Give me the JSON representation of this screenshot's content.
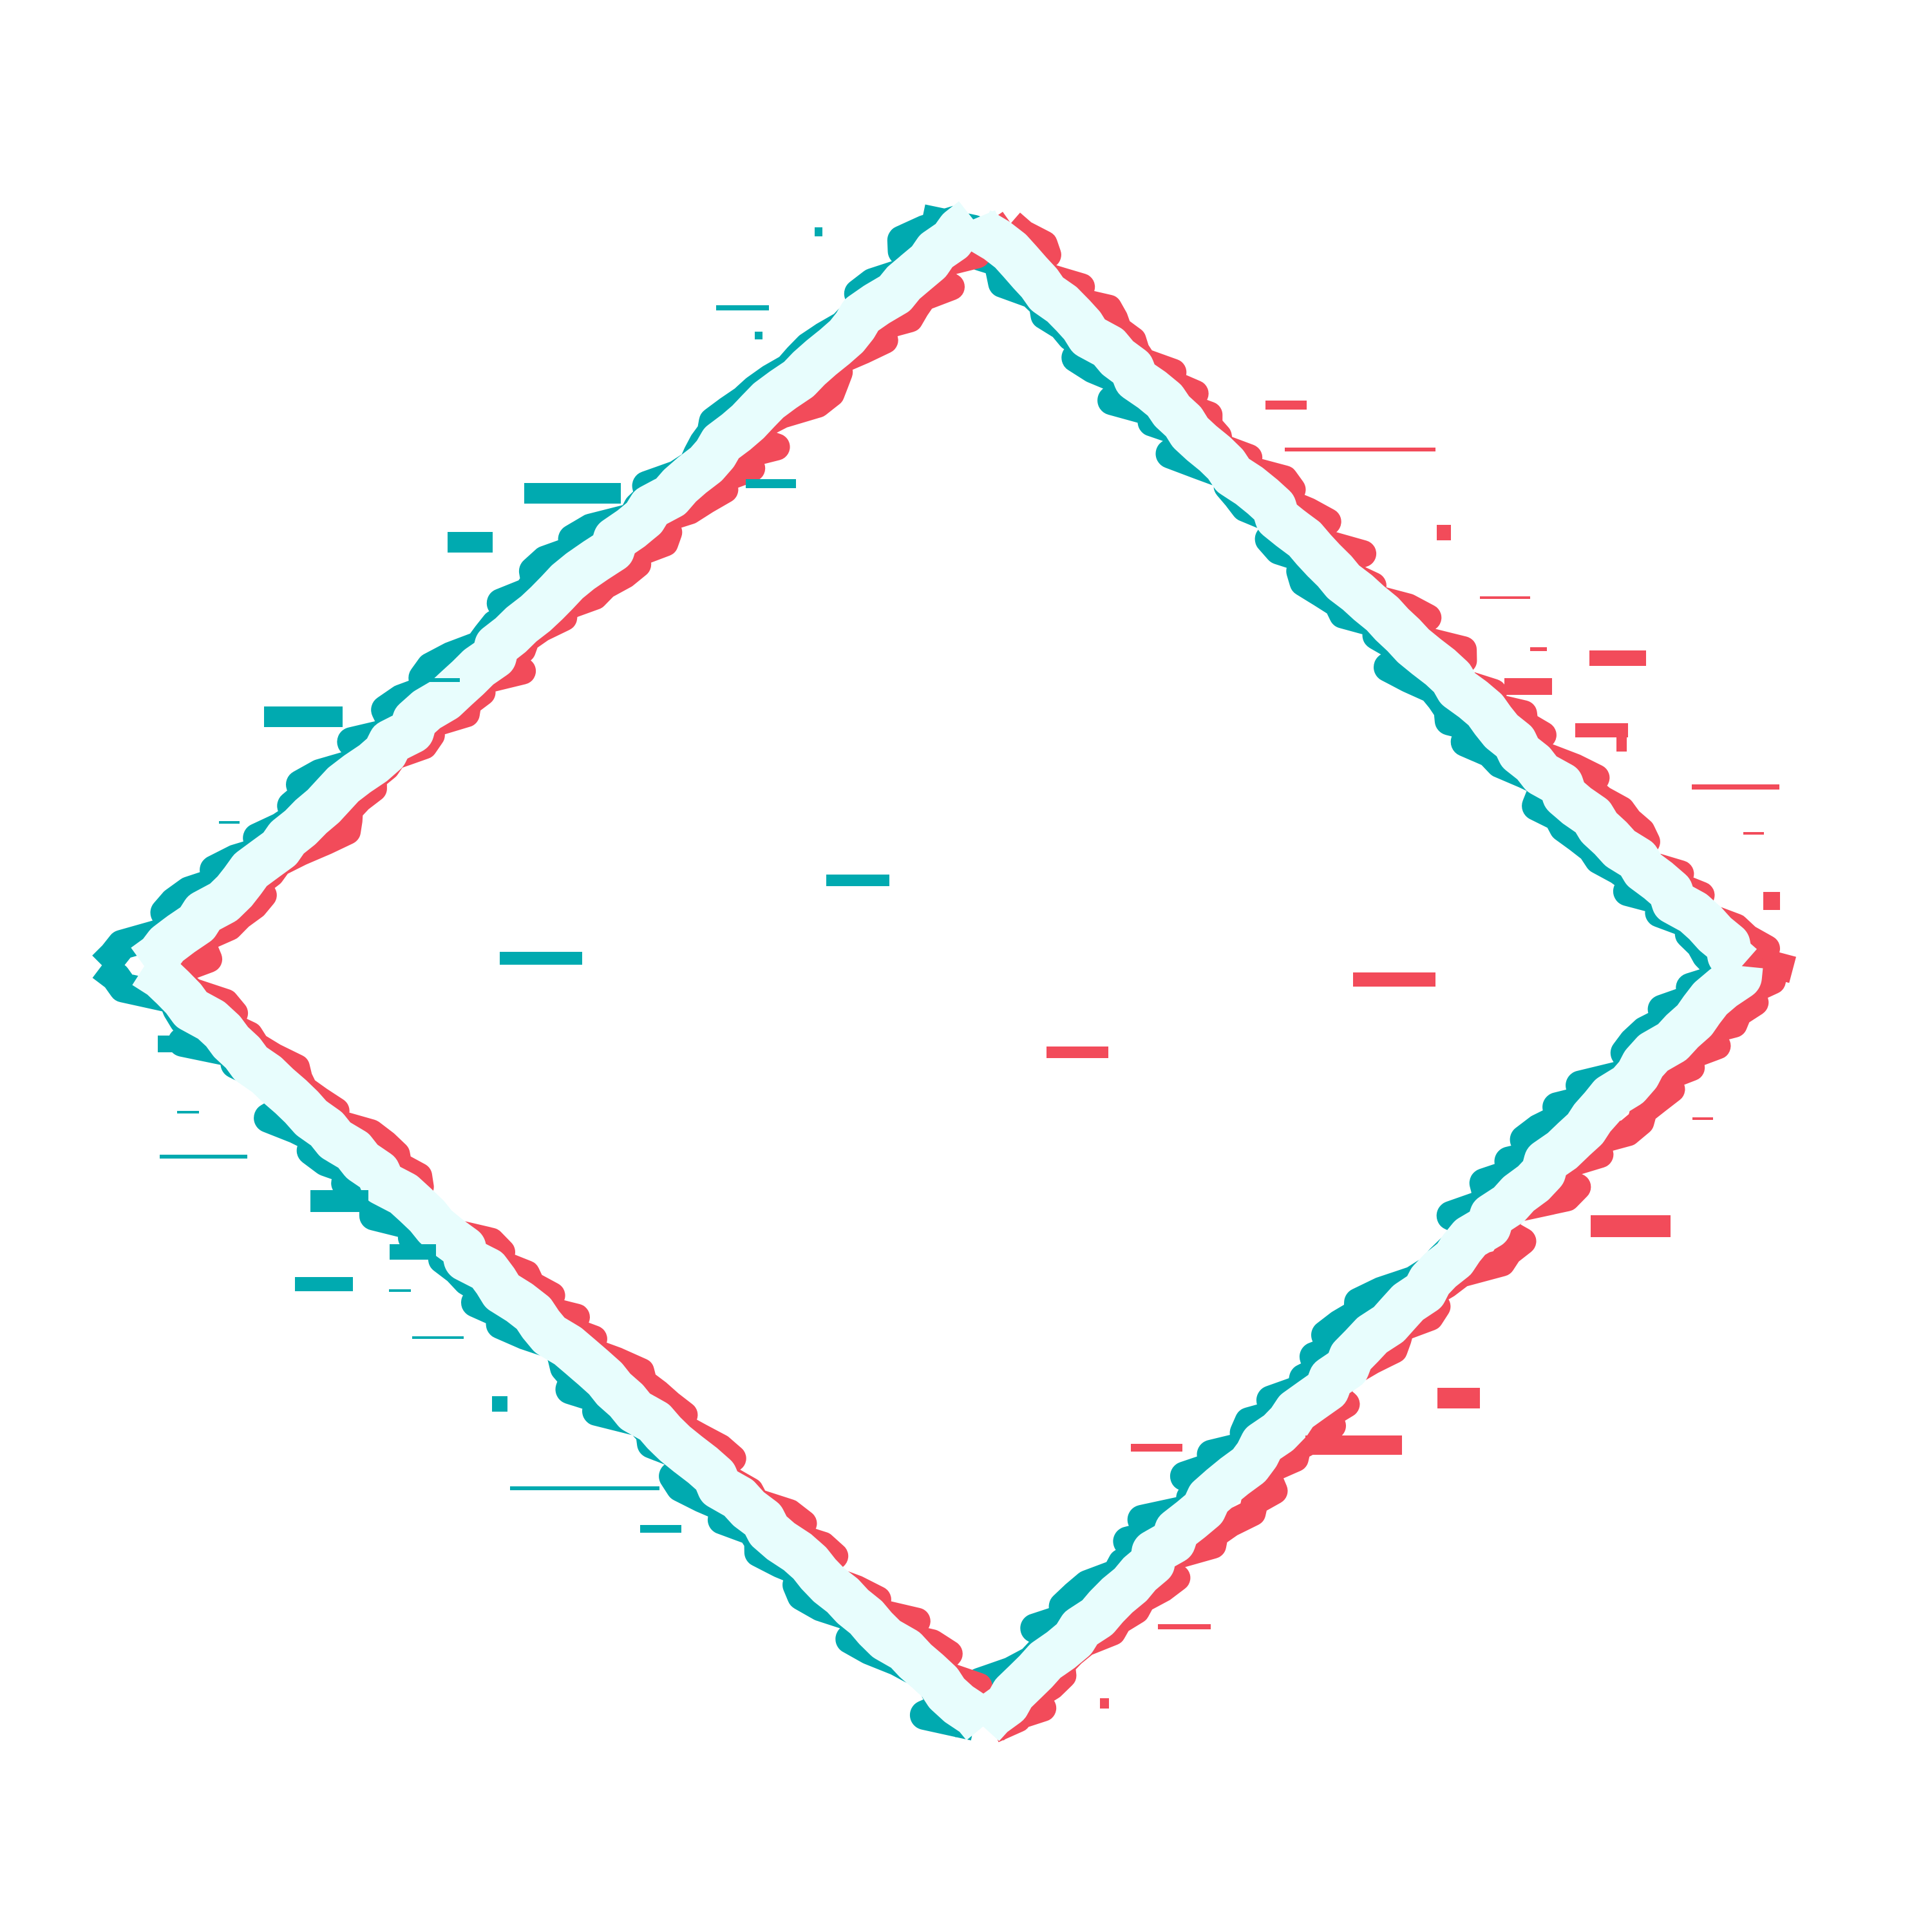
{
  "graphic": {
    "name": "glitch-diamond-frame",
    "colors": {
      "background": "#ffffff",
      "teal": "#00aab0",
      "red": "#f24b5a",
      "core": "#e8fdfd"
    }
  }
}
